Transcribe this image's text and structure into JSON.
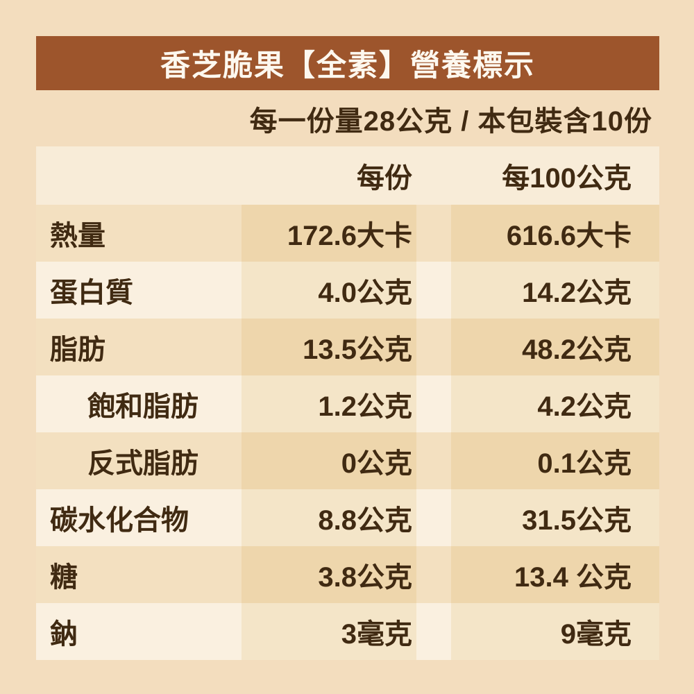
{
  "title": "香芝脆果【全素】營養標示",
  "serving_info": "每一份量28公克 / 本包裝含10份",
  "table": {
    "columns": [
      "每份",
      "每100公克"
    ],
    "rows": [
      {
        "label": "熱量",
        "per_serving": "172.6大卡",
        "per_100g": "616.6大卡"
      },
      {
        "label": "蛋白質",
        "per_serving": "4.0公克",
        "per_100g": "14.2公克"
      },
      {
        "label": "脂肪",
        "per_serving": "13.5公克",
        "per_100g": "48.2公克"
      },
      {
        "label": "飽和脂肪",
        "per_serving": "1.2公克",
        "per_100g": "4.2公克"
      },
      {
        "label": "反式脂肪",
        "per_serving": "0公克",
        "per_100g": "0.1公克"
      },
      {
        "label": "碳水化合物",
        "per_serving": "8.8公克",
        "per_100g": "31.5公克"
      },
      {
        "label": "糖",
        "per_serving": "3.8公克",
        "per_100g": "13.4 公克"
      },
      {
        "label": "鈉",
        "per_serving": "3毫克",
        "per_100g": "9毫克"
      }
    ]
  },
  "colors": {
    "page_background": "#f3ddbe",
    "title_bar": "#9d552c",
    "title_text": "#fdf8ef",
    "body_text": "#402a12",
    "header_row": "#f8ecd8",
    "row_dark_label": "#f3e0c0",
    "row_dark_value": "#eed6ac",
    "row_light_label": "#faf0e0",
    "row_light_value": "#f4e5c8"
  }
}
